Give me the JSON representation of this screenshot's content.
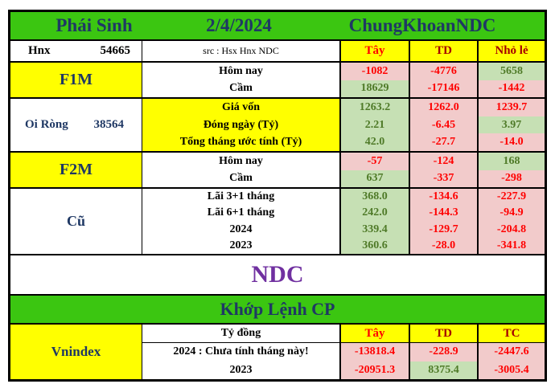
{
  "colors": {
    "header_green": "#3BC611",
    "yellow": "#FFFF00",
    "navy": "#1F3864",
    "purple": "#7030A0",
    "pink_bg": "#F2CBCB",
    "green_bg": "#C6E0B4",
    "red": "#FF0000",
    "dark_red": "#A50000",
    "dark_green": "#4F7A28"
  },
  "title_bar": {
    "market": "Phái Sinh",
    "date": "2/4/2024",
    "brand": "ChungKhoanNDC"
  },
  "info_row": {
    "exchange": "Hnx",
    "volume": "54665",
    "source": "src : Hsx Hnx NDC",
    "col_tay": "Tây",
    "col_td": "TD",
    "col_nhole": "Nhỏ lẻ"
  },
  "f1m": {
    "label": "F1M",
    "rows": [
      {
        "label": "Hôm nay",
        "tay": "-1082",
        "td": "-4776",
        "nhole": "5658"
      },
      {
        "label": "Cầm",
        "tay": "18629",
        "td": "-17146",
        "nhole": "-1442"
      }
    ]
  },
  "oi_rong": {
    "label": "Oi Ròng",
    "value": "38564",
    "rows": [
      {
        "label": "Giá vốn",
        "tay": "1263.2",
        "td": "1262.0",
        "nhole": "1239.7"
      },
      {
        "label": "Đóng ngày (Tỷ)",
        "tay": "2.21",
        "td": "-6.45",
        "nhole": "3.97"
      },
      {
        "label": "Tổng tháng ước tính (Tỷ)",
        "tay": "42.0",
        "td": "-27.7",
        "nhole": "-14.0"
      }
    ]
  },
  "f2m": {
    "label": "F2M",
    "rows": [
      {
        "label": "Hôm nay",
        "tay": "-57",
        "td": "-124",
        "nhole": "168"
      },
      {
        "label": "Cầm",
        "tay": "637",
        "td": "-337",
        "nhole": "-298"
      }
    ]
  },
  "cu": {
    "label": "Cũ",
    "rows": [
      {
        "label": "Lãi 3+1 tháng",
        "tay": "368.0",
        "td": "-134.6",
        "nhole": "-227.9"
      },
      {
        "label": "Lãi 6+1 tháng",
        "tay": "242.0",
        "td": "-144.3",
        "nhole": "-94.9"
      },
      {
        "label": "2024",
        "tay": "339.4",
        "td": "-129.7",
        "nhole": "-204.8"
      },
      {
        "label": "2023",
        "tay": "360.6",
        "td": "-28.0",
        "nhole": "-341.8"
      }
    ]
  },
  "ndc_banner": "NDC",
  "khop_lenh_header": "Khớp Lệnh CP",
  "vnindex": {
    "label": "Vnindex",
    "unit": "Tỷ đồng",
    "col_tay": "Tây",
    "col_td": "TD",
    "col_tc": "TC",
    "rows": [
      {
        "label": "2024 : Chưa tính tháng này!",
        "tay": "-13818.4",
        "td": "-228.9",
        "tc": "-2447.6"
      },
      {
        "label": "2023",
        "tay": "-20951.3",
        "td": "8375.4",
        "tc": "-3005.4"
      }
    ]
  }
}
